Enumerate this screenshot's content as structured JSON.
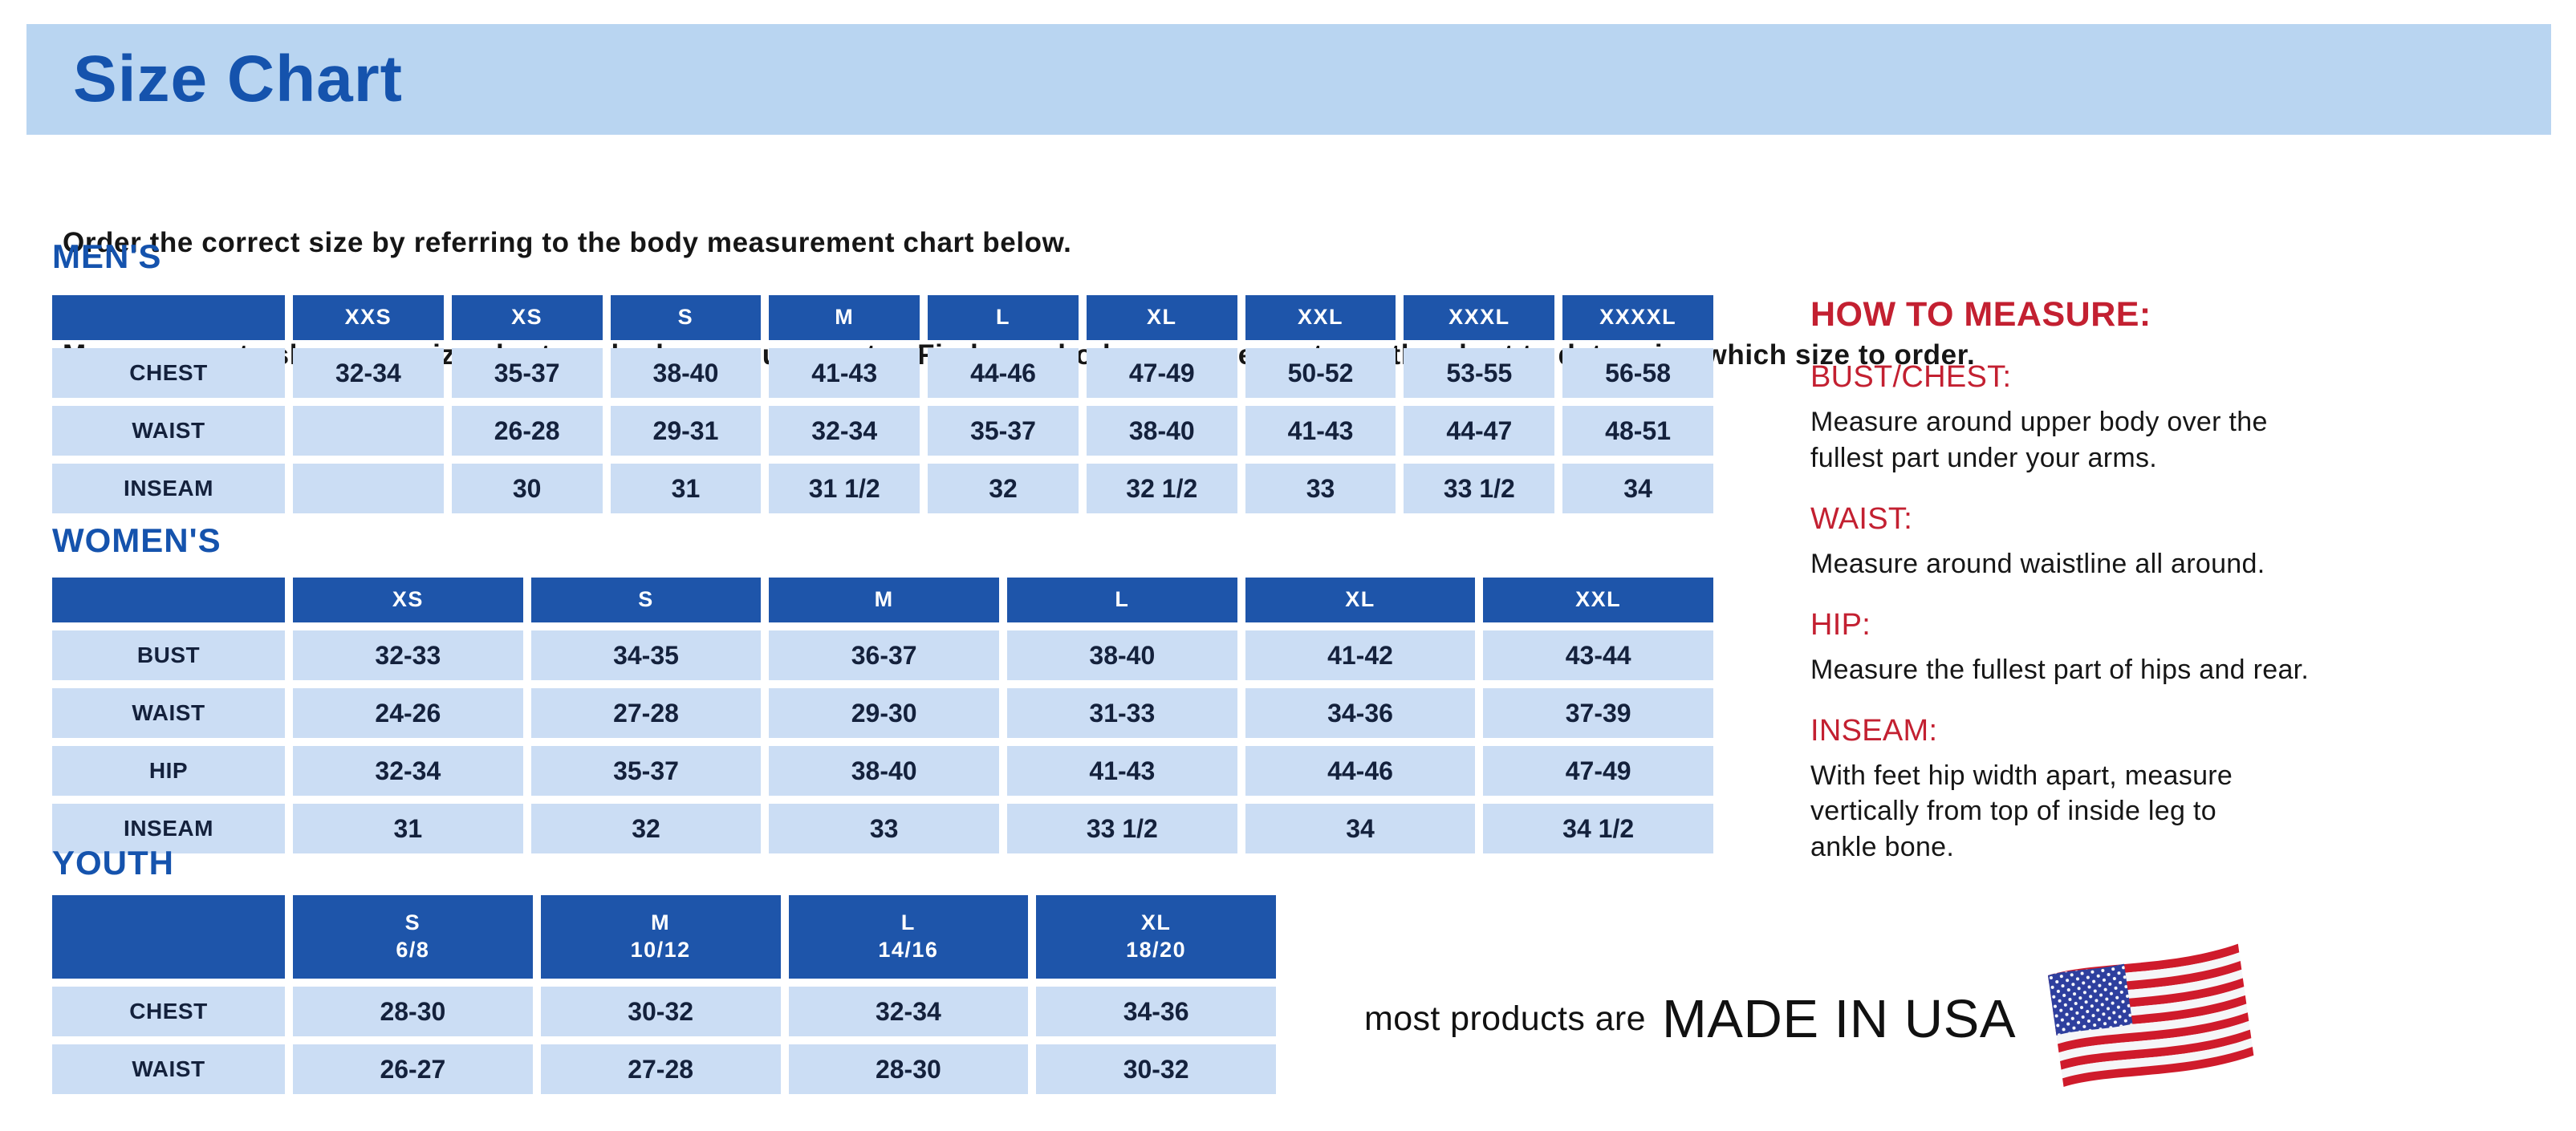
{
  "page": {
    "title": "Size Chart",
    "intro_line1": "Order the correct size by referring to the body measurement chart below.",
    "intro_line2": "Measurements shown on size chart are body measurements.  Find your body measurements on the chart to determine which size to order."
  },
  "colors": {
    "banner_bg": "#b9d5f1",
    "heading_blue": "#1553ad",
    "table_header_bg": "#1e55aa",
    "table_header_text": "#ffffff",
    "cell_bg": "#cbddf4",
    "cell_text": "#14213c",
    "accent_red": "#c32031",
    "body_text": "#161616",
    "flag_red": "#cf1b2b",
    "flag_blue": "#2e3f9e"
  },
  "tables": [
    {
      "id": "mens",
      "heading": "MEN'S",
      "columns": [
        "XXS",
        "XS",
        "S",
        "M",
        "L",
        "XL",
        "XXL",
        "XXXL",
        "XXXXL"
      ],
      "rows": [
        {
          "label": "CHEST",
          "values": [
            "32-34",
            "35-37",
            "38-40",
            "41-43",
            "44-46",
            "47-49",
            "50-52",
            "53-55",
            "56-58"
          ]
        },
        {
          "label": "WAIST",
          "values": [
            "",
            "26-28",
            "29-31",
            "32-34",
            "35-37",
            "38-40",
            "41-43",
            "44-47",
            "48-51"
          ]
        },
        {
          "label": "INSEAM",
          "values": [
            "",
            "30",
            "31",
            "31 1/2",
            "32",
            "32 1/2",
            "33",
            "33 1/2",
            "34"
          ]
        }
      ]
    },
    {
      "id": "womens",
      "heading": "WOMEN'S",
      "columns": [
        "XS",
        "S",
        "M",
        "L",
        "XL",
        "XXL"
      ],
      "rows": [
        {
          "label": "BUST",
          "values": [
            "32-33",
            "34-35",
            "36-37",
            "38-40",
            "41-42",
            "43-44"
          ]
        },
        {
          "label": "WAIST",
          "values": [
            "24-26",
            "27-28",
            "29-30",
            "31-33",
            "34-36",
            "37-39"
          ]
        },
        {
          "label": "HIP",
          "values": [
            "32-34",
            "35-37",
            "38-40",
            "41-43",
            "44-46",
            "47-49"
          ]
        },
        {
          "label": "INSEAM",
          "values": [
            "31",
            "32",
            "33",
            "33 1/2",
            "34",
            "34 1/2"
          ]
        }
      ]
    },
    {
      "id": "youth",
      "heading": "YOUTH",
      "columns": [
        {
          "size": "S",
          "range": "6/8"
        },
        {
          "size": "M",
          "range": "10/12"
        },
        {
          "size": "L",
          "range": "14/16"
        },
        {
          "size": "XL",
          "range": "18/20"
        }
      ],
      "rows": [
        {
          "label": "CHEST",
          "values": [
            "28-30",
            "30-32",
            "32-34",
            "34-36"
          ]
        },
        {
          "label": "WAIST",
          "values": [
            "26-27",
            "27-28",
            "28-30",
            "30-32"
          ]
        }
      ]
    }
  ],
  "how_to_measure": {
    "heading": "HOW TO MEASURE:",
    "items": [
      {
        "term": "BUST/CHEST:",
        "desc": "Measure around upper body over the\nfullest part under your arms."
      },
      {
        "term": "WAIST:",
        "desc": "Measure around waistline all around."
      },
      {
        "term": "HIP:",
        "desc": "Measure the fullest part of hips and rear."
      },
      {
        "term": "INSEAM:",
        "desc": "With feet hip width apart, measure\nvertically from top of inside leg to\nankle bone."
      }
    ]
  },
  "footer": {
    "prefix": "most products are",
    "made_in": "MADE IN USA",
    "flag_icon": "us-flag-icon"
  }
}
